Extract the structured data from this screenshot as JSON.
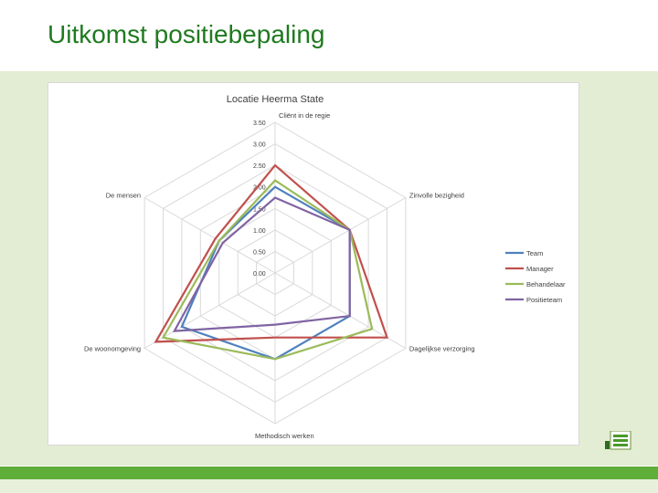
{
  "slide": {
    "title": "Uitkomst positiebepaling"
  },
  "colors": {
    "title": "#1f7a1f",
    "band": "#e3edd3",
    "bar": "#5fae3a",
    "grid": "#d9d9d9"
  },
  "icons": {
    "logo": "company-logo-icon"
  },
  "chart_data": {
    "type": "radar",
    "title": "Locatie Heerma State",
    "categories": [
      "Cliënt in de regie",
      "Zinvolle bezigheid",
      "Dagelijkse verzorging",
      "Methodisch werken",
      "De woonomgeving",
      "De mensen"
    ],
    "rlim": [
      0,
      3.5
    ],
    "ticks": [
      "0.00",
      "0.50",
      "1.00",
      "1.50",
      "2.00",
      "2.50",
      "3.00",
      "3.50"
    ],
    "grid": true,
    "legend_position": "right",
    "series": [
      {
        "name": "Team",
        "color": "#4f81bd",
        "values": [
          2.0,
          2.0,
          2.0,
          2.0,
          2.5,
          1.5
        ]
      },
      {
        "name": "Manager",
        "color": "#c0504d",
        "values": [
          2.5,
          2.0,
          3.0,
          1.5,
          3.2,
          1.6
        ]
      },
      {
        "name": "Behandelaar",
        "color": "#9bbb59",
        "values": [
          2.15,
          2.0,
          2.6,
          2.0,
          3.0,
          1.5
        ]
      },
      {
        "name": "Positieteam",
        "color": "#8064a2",
        "values": [
          1.75,
          2.0,
          2.0,
          1.2,
          2.7,
          1.4
        ]
      }
    ]
  }
}
